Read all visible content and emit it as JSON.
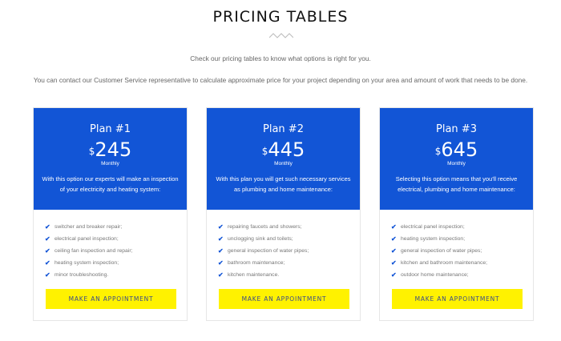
{
  "header": {
    "title": "PRICING TABLES",
    "line1": "Check our pricing tables to know what options is right for you.",
    "line2": "You can contact our Customer Service representative to calculate approximate price for your project depending on your area and amount of work that needs to be done."
  },
  "colors": {
    "accent": "#1255d6",
    "button": "#fff200"
  },
  "plans": [
    {
      "name": "Plan #1",
      "currency": "$",
      "price": "245",
      "period": "Monthly",
      "desc": "With this option our experts will make an inspection of your electricity and heating system:",
      "features": [
        "switcher and breaker repair;",
        "electrical panel inspection;",
        "ceiling fan inspection and repair;",
        "heating system inspection;",
        "minor troubleshooting."
      ],
      "button": "MAKE AN APPOINTMENT"
    },
    {
      "name": "Plan #2",
      "currency": "$",
      "price": "445",
      "period": "Monthly",
      "desc": "With this plan you will get such necessary services as plumbing and home maintenance:",
      "features": [
        "repairing faucets and showers;",
        "unclogging sink and toilets;",
        "general inspection of water pipes;",
        "bathroom maintenance;",
        "kitchen maintenance."
      ],
      "button": "MAKE AN APPOINTMENT"
    },
    {
      "name": "Plan #3",
      "currency": "$",
      "price": "645",
      "period": "Monthly",
      "desc": "Selecting this option means that you'll receive electrical, plumbing and home maintenance:",
      "features": [
        "electrical panel inspection;",
        "heating system inspection;",
        "general inspection of water pipes;",
        "kitchen and bathroom maintenance;",
        "outdoor home maintenance;"
      ],
      "button": "MAKE AN APPOINTMENT"
    }
  ]
}
